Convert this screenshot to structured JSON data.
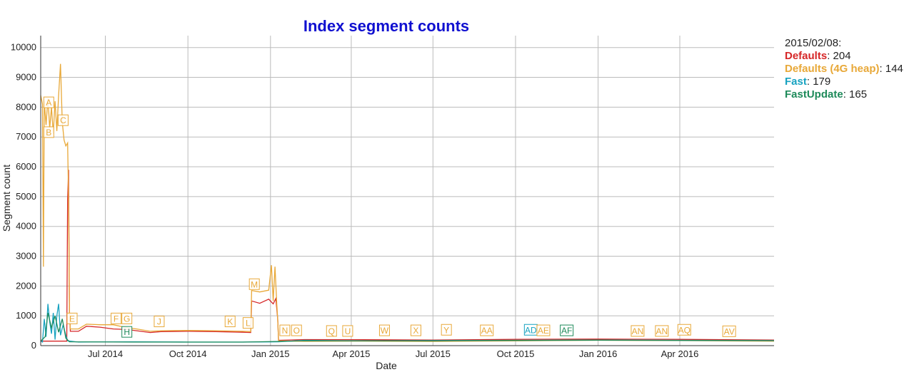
{
  "chart_data": {
    "type": "line",
    "title": "Index segment counts",
    "xlabel": "Date",
    "ylabel": "Segment count",
    "x_range": [
      "2014-04-20",
      "2016-07-15"
    ],
    "ylim": [
      0,
      10400
    ],
    "y_ticks": [
      0,
      1000,
      2000,
      3000,
      4000,
      5000,
      6000,
      7000,
      8000,
      9000,
      10000
    ],
    "x_ticks": [
      {
        "date": "2014-07-01",
        "label": "Jul 2014"
      },
      {
        "date": "2014-10-01",
        "label": "Oct 2014"
      },
      {
        "date": "2015-01-01",
        "label": "Jan 2015"
      },
      {
        "date": "2015-04-01",
        "label": "Apr 2015"
      },
      {
        "date": "2015-07-01",
        "label": "Jul 2015"
      },
      {
        "date": "2015-10-01",
        "label": "Oct 2015"
      },
      {
        "date": "2016-01-01",
        "label": "Jan 2016"
      },
      {
        "date": "2016-04-01",
        "label": "Apr 2016"
      }
    ],
    "grid": true,
    "legend_position": "right",
    "series": [
      {
        "name": "Defaults",
        "color": "#d62728",
        "points": [
          [
            "2014-04-20",
            150
          ],
          [
            "2014-05-10",
            150
          ],
          [
            "2014-05-19",
            150
          ],
          [
            "2014-05-20",
            4900
          ],
          [
            "2014-05-21",
            5900
          ],
          [
            "2014-05-22",
            1200
          ],
          [
            "2014-05-23",
            480
          ],
          [
            "2014-06-01",
            480
          ],
          [
            "2014-06-10",
            650
          ],
          [
            "2014-06-25",
            620
          ],
          [
            "2014-07-10",
            560
          ],
          [
            "2014-07-25",
            540
          ],
          [
            "2014-08-05",
            500
          ],
          [
            "2014-08-20",
            440
          ],
          [
            "2014-09-01",
            470
          ],
          [
            "2014-10-01",
            480
          ],
          [
            "2014-11-01",
            470
          ],
          [
            "2014-12-01",
            450
          ],
          [
            "2014-12-10",
            440
          ],
          [
            "2014-12-11",
            1500
          ],
          [
            "2014-12-20",
            1420
          ],
          [
            "2014-12-30",
            1560
          ],
          [
            "2015-01-04",
            1400
          ],
          [
            "2015-01-07",
            1580
          ],
          [
            "2015-01-09",
            900
          ],
          [
            "2015-01-10",
            180
          ],
          [
            "2015-02-08",
            204
          ],
          [
            "2015-04-01",
            200
          ],
          [
            "2015-07-01",
            190
          ],
          [
            "2015-10-01",
            210
          ],
          [
            "2016-01-01",
            220
          ],
          [
            "2016-04-01",
            210
          ],
          [
            "2016-07-15",
            190
          ]
        ]
      },
      {
        "name": "Defaults (4G heap)",
        "color": "#e8a838",
        "points": [
          [
            "2014-04-20",
            8400
          ],
          [
            "2014-04-22",
            8100
          ],
          [
            "2014-04-23",
            2650
          ],
          [
            "2014-04-24",
            8200
          ],
          [
            "2014-04-26",
            7400
          ],
          [
            "2014-04-28",
            8300
          ],
          [
            "2014-04-30",
            7300
          ],
          [
            "2014-05-02",
            8000
          ],
          [
            "2014-05-04",
            7100
          ],
          [
            "2014-05-06",
            8200
          ],
          [
            "2014-05-08",
            7200
          ],
          [
            "2014-05-10",
            8400
          ],
          [
            "2014-05-12",
            9450
          ],
          [
            "2014-05-14",
            7500
          ],
          [
            "2014-05-16",
            6900
          ],
          [
            "2014-05-18",
            6700
          ],
          [
            "2014-05-20",
            6800
          ],
          [
            "2014-05-21",
            4900
          ],
          [
            "2014-05-22",
            1200
          ],
          [
            "2014-05-23",
            560
          ],
          [
            "2014-06-01",
            560
          ],
          [
            "2014-06-10",
            720
          ],
          [
            "2014-06-25",
            700
          ],
          [
            "2014-07-10",
            700
          ],
          [
            "2014-07-25",
            600
          ],
          [
            "2014-08-05",
            560
          ],
          [
            "2014-08-20",
            480
          ],
          [
            "2014-09-01",
            500
          ],
          [
            "2014-10-01",
            510
          ],
          [
            "2014-11-01",
            500
          ],
          [
            "2014-12-01",
            480
          ],
          [
            "2014-12-10",
            470
          ],
          [
            "2014-12-11",
            1850
          ],
          [
            "2014-12-20",
            1800
          ],
          [
            "2014-12-30",
            1860
          ],
          [
            "2015-01-02",
            2700
          ],
          [
            "2015-01-04",
            1500
          ],
          [
            "2015-01-06",
            2650
          ],
          [
            "2015-01-08",
            1400
          ],
          [
            "2015-01-09",
            900
          ],
          [
            "2015-01-10",
            160
          ],
          [
            "2015-02-08",
            144
          ],
          [
            "2015-04-01",
            150
          ],
          [
            "2015-07-01",
            140
          ],
          [
            "2015-10-01",
            160
          ],
          [
            "2016-01-01",
            180
          ],
          [
            "2016-04-01",
            170
          ],
          [
            "2016-07-15",
            150
          ]
        ]
      },
      {
        "name": "Fast",
        "color": "#17a2c0",
        "points": [
          [
            "2014-04-20",
            150
          ],
          [
            "2014-04-22",
            120
          ],
          [
            "2014-04-24",
            900
          ],
          [
            "2014-04-26",
            300
          ],
          [
            "2014-04-28",
            1400
          ],
          [
            "2014-04-30",
            800
          ],
          [
            "2014-05-02",
            400
          ],
          [
            "2014-05-04",
            1100
          ],
          [
            "2014-05-06",
            200
          ],
          [
            "2014-05-08",
            1000
          ],
          [
            "2014-05-10",
            1400
          ],
          [
            "2014-05-12",
            350
          ],
          [
            "2014-05-15",
            700
          ],
          [
            "2014-05-18",
            350
          ],
          [
            "2014-05-20",
            160
          ],
          [
            "2014-06-01",
            120
          ],
          [
            "2014-08-01",
            130
          ],
          [
            "2014-10-01",
            120
          ],
          [
            "2014-12-01",
            120
          ],
          [
            "2015-01-10",
            130
          ],
          [
            "2015-02-08",
            179
          ],
          [
            "2015-04-01",
            160
          ],
          [
            "2015-07-01",
            170
          ],
          [
            "2015-10-01",
            180
          ],
          [
            "2016-01-01",
            190
          ],
          [
            "2016-04-01",
            180
          ],
          [
            "2016-07-15",
            170
          ]
        ]
      },
      {
        "name": "FastUpdate",
        "color": "#1e8a5a",
        "points": [
          [
            "2014-04-20",
            150
          ],
          [
            "2014-04-25",
            300
          ],
          [
            "2014-04-28",
            1100
          ],
          [
            "2014-05-02",
            600
          ],
          [
            "2014-05-06",
            1000
          ],
          [
            "2014-05-10",
            450
          ],
          [
            "2014-05-14",
            900
          ],
          [
            "2014-05-18",
            250
          ],
          [
            "2014-05-22",
            130
          ],
          [
            "2014-08-01",
            120
          ],
          [
            "2014-12-01",
            120
          ],
          [
            "2015-01-10",
            140
          ],
          [
            "2015-02-08",
            165
          ],
          [
            "2015-07-01",
            160
          ],
          [
            "2015-10-01",
            175
          ],
          [
            "2016-01-01",
            185
          ],
          [
            "2016-04-01",
            175
          ],
          [
            "2016-07-15",
            165
          ]
        ]
      }
    ],
    "annotations": [
      {
        "label": "A",
        "date": "2014-04-29",
        "y": 8150,
        "color": "#e8a838"
      },
      {
        "label": "B",
        "date": "2014-04-29",
        "y": 7150,
        "color": "#e8a838"
      },
      {
        "label": "C",
        "date": "2014-05-15",
        "y": 7550,
        "color": "#e8a838"
      },
      {
        "label": "E",
        "date": "2014-05-25",
        "y": 900,
        "color": "#e8a838"
      },
      {
        "label": "F",
        "date": "2014-07-13",
        "y": 900,
        "color": "#e8a838"
      },
      {
        "label": "G",
        "date": "2014-07-25",
        "y": 900,
        "color": "#e8a838"
      },
      {
        "label": "H",
        "date": "2014-07-25",
        "y": 450,
        "color": "#1e8a5a"
      },
      {
        "label": "J",
        "date": "2014-08-30",
        "y": 800,
        "color": "#e8a838"
      },
      {
        "label": "K",
        "date": "2014-11-17",
        "y": 800,
        "color": "#e8a838"
      },
      {
        "label": "L",
        "date": "2014-12-07",
        "y": 750,
        "color": "#e8a838"
      },
      {
        "label": "M",
        "date": "2014-12-14",
        "y": 2050,
        "color": "#e8a838"
      },
      {
        "label": "N",
        "date": "2015-01-17",
        "y": 500,
        "color": "#e8a838"
      },
      {
        "label": "O",
        "date": "2015-01-30",
        "y": 500,
        "color": "#e8a838"
      },
      {
        "label": "Q",
        "date": "2015-03-10",
        "y": 480,
        "color": "#e8a838"
      },
      {
        "label": "U",
        "date": "2015-03-28",
        "y": 480,
        "color": "#e8a838"
      },
      {
        "label": "W",
        "date": "2015-05-08",
        "y": 500,
        "color": "#e8a838"
      },
      {
        "label": "X",
        "date": "2015-06-12",
        "y": 500,
        "color": "#e8a838"
      },
      {
        "label": "Y",
        "date": "2015-07-16",
        "y": 520,
        "color": "#e8a838"
      },
      {
        "label": "AA",
        "date": "2015-08-30",
        "y": 500,
        "color": "#e8a838"
      },
      {
        "label": "AD",
        "date": "2015-10-18",
        "y": 520,
        "color": "#17a2c0"
      },
      {
        "label": "AE",
        "date": "2015-11-01",
        "y": 500,
        "color": "#e8a838"
      },
      {
        "label": "AF",
        "date": "2015-11-27",
        "y": 500,
        "color": "#1e8a5a"
      },
      {
        "label": "AN",
        "date": "2016-02-14",
        "y": 480,
        "color": "#e8a838"
      },
      {
        "label": "AN",
        "date": "2016-03-12",
        "y": 480,
        "color": "#e8a838"
      },
      {
        "label": "AQ",
        "date": "2016-04-06",
        "y": 520,
        "color": "#e8a838"
      },
      {
        "label": "AV",
        "date": "2016-05-26",
        "y": 470,
        "color": "#e8a838"
      }
    ]
  },
  "legend": {
    "date": "2015/02/08:",
    "rows": [
      {
        "name": "Defaults",
        "value": "204",
        "color": "#d62728"
      },
      {
        "name": "Defaults (4G heap)",
        "value": "144",
        "color": "#e8a838"
      },
      {
        "name": "Fast",
        "value": "179",
        "color": "#17a2c0"
      },
      {
        "name": "FastUpdate",
        "value": "165",
        "color": "#1e8a5a"
      }
    ]
  }
}
